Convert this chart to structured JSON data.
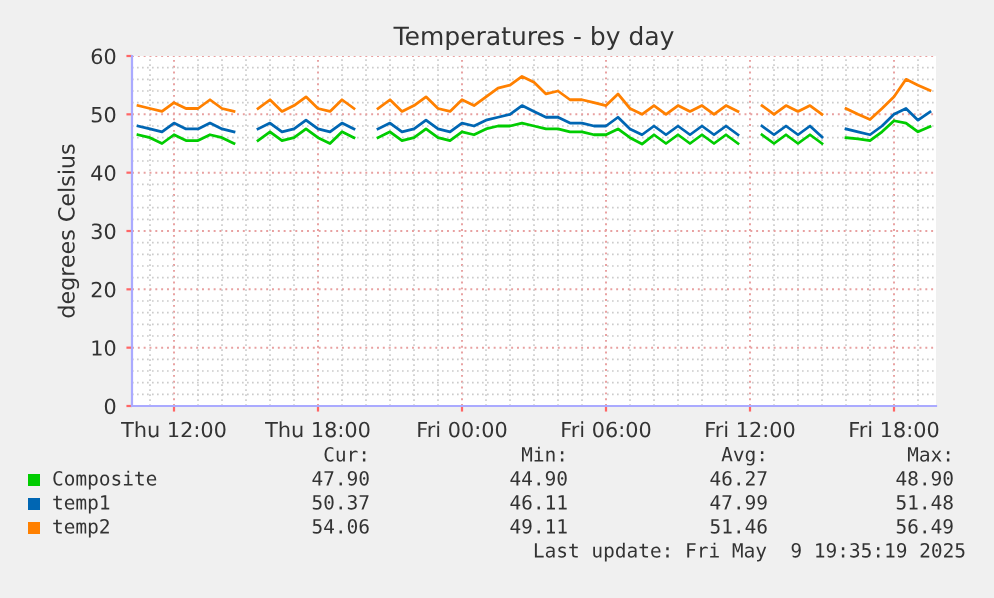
{
  "chart_data": {
    "type": "line",
    "title": "Temperatures - by day",
    "ylabel": "degrees Celsius",
    "x": [
      "2025-05-08T10:30",
      "2025-05-08T11:00",
      "2025-05-08T11:30",
      "2025-05-08T12:00",
      "2025-05-08T12:30",
      "2025-05-08T13:00",
      "2025-05-08T13:30",
      "2025-05-08T14:00",
      "2025-05-08T14:30",
      "2025-05-08T15:00",
      "2025-05-08T15:30",
      "2025-05-08T16:00",
      "2025-05-08T16:30",
      "2025-05-08T17:00",
      "2025-05-08T17:30",
      "2025-05-08T18:00",
      "2025-05-08T18:30",
      "2025-05-08T19:00",
      "2025-05-08T19:30",
      "2025-05-08T20:00",
      "2025-05-08T20:30",
      "2025-05-08T21:00",
      "2025-05-08T21:30",
      "2025-05-08T22:00",
      "2025-05-08T22:30",
      "2025-05-08T23:00",
      "2025-05-08T23:30",
      "2025-05-09T00:00",
      "2025-05-09T00:30",
      "2025-05-09T01:00",
      "2025-05-09T01:30",
      "2025-05-09T02:00",
      "2025-05-09T02:30",
      "2025-05-09T03:00",
      "2025-05-09T03:30",
      "2025-05-09T04:00",
      "2025-05-09T04:30",
      "2025-05-09T05:00",
      "2025-05-09T05:30",
      "2025-05-09T06:00",
      "2025-05-09T06:30",
      "2025-05-09T07:00",
      "2025-05-09T07:30",
      "2025-05-09T08:00",
      "2025-05-09T08:30",
      "2025-05-09T09:00",
      "2025-05-09T09:30",
      "2025-05-09T10:00",
      "2025-05-09T10:30",
      "2025-05-09T11:00",
      "2025-05-09T11:30",
      "2025-05-09T12:00",
      "2025-05-09T12:30",
      "2025-05-09T13:00",
      "2025-05-09T13:30",
      "2025-05-09T14:00",
      "2025-05-09T14:30",
      "2025-05-09T15:00",
      "2025-05-09T15:30",
      "2025-05-09T16:00",
      "2025-05-09T16:30",
      "2025-05-09T17:00",
      "2025-05-09T17:30",
      "2025-05-09T18:00",
      "2025-05-09T18:30",
      "2025-05-09T19:00",
      "2025-05-09T19:30"
    ],
    "series": [
      {
        "name": "Composite",
        "color": "#00cc00",
        "values": [
          46.5,
          46,
          45,
          46.5,
          45.5,
          45.5,
          46.5,
          46,
          45,
          null,
          45.5,
          47,
          45.5,
          46,
          47.5,
          46,
          45,
          47,
          46,
          null,
          46,
          47,
          45.5,
          46,
          47.5,
          46,
          45.5,
          47,
          46.5,
          47.5,
          48,
          48,
          48.5,
          48,
          47.5,
          47.5,
          47,
          47,
          46.5,
          46.5,
          47.5,
          46,
          44.9,
          46.5,
          45,
          46.5,
          45,
          46.5,
          45,
          46.5,
          45,
          null,
          46.5,
          45,
          46.5,
          45,
          46.5,
          45,
          null,
          46,
          45.8,
          45.5,
          47,
          48.9,
          48.5,
          47,
          47.9
        ]
      },
      {
        "name": "temp1",
        "color": "#0066b3",
        "values": [
          48,
          47.5,
          47,
          48.5,
          47.5,
          47.5,
          48.5,
          47.5,
          47,
          null,
          47.5,
          48.5,
          47,
          47.5,
          49,
          47.5,
          47,
          48.5,
          47.5,
          null,
          47.5,
          48.5,
          47,
          47.5,
          49,
          47.5,
          47,
          48.5,
          48,
          49,
          49.5,
          50,
          51.5,
          50.5,
          49.5,
          49.5,
          48.5,
          48.5,
          48,
          48,
          49.5,
          47.5,
          46.5,
          48,
          46.5,
          48,
          46.5,
          48,
          46.5,
          48,
          46.5,
          null,
          48,
          46.5,
          48,
          46.5,
          48,
          46.1,
          null,
          47.5,
          47,
          46.5,
          48,
          50,
          51,
          49,
          50.4
        ]
      },
      {
        "name": "temp2",
        "color": "#ff8000",
        "values": [
          51.5,
          51,
          50.5,
          52,
          51,
          51,
          52.5,
          51,
          50.5,
          null,
          51,
          52.5,
          50.5,
          51.5,
          53,
          51,
          50.5,
          52.5,
          51,
          null,
          51,
          52.5,
          50.5,
          51.5,
          53,
          51,
          50.5,
          52.5,
          51.5,
          53,
          54.5,
          55,
          56.5,
          55.5,
          53.5,
          54,
          52.5,
          52.5,
          52,
          51.5,
          53.5,
          51,
          50,
          51.5,
          50,
          51.5,
          50.5,
          51.5,
          50,
          51.5,
          50.5,
          null,
          51.5,
          50,
          51.5,
          50.5,
          51.5,
          50,
          null,
          51,
          50,
          49.1,
          51,
          53,
          56,
          55,
          54.1
        ]
      }
    ],
    "xlim": [
      "2025-05-08T10:15",
      "2025-05-09T19:45"
    ],
    "xticks": [
      {
        "value": "2025-05-08T12:00",
        "label": "Thu 12:00"
      },
      {
        "value": "2025-05-08T18:00",
        "label": "Thu 18:00"
      },
      {
        "value": "2025-05-09T00:00",
        "label": "Fri 00:00"
      },
      {
        "value": "2025-05-09T06:00",
        "label": "Fri 06:00"
      },
      {
        "value": "2025-05-09T12:00",
        "label": "Fri 12:00"
      },
      {
        "value": "2025-05-09T18:00",
        "label": "Fri 18:00"
      }
    ],
    "ylim": [
      0,
      60
    ],
    "yticks": [
      0,
      10,
      20,
      30,
      40,
      50,
      60
    ],
    "grid": true,
    "legend": "bottom",
    "marker": "none",
    "line_style": "solid",
    "annotations": [
      "Cur:",
      "Min:",
      "Avg:",
      "Max:",
      "47.90",
      "44.90",
      "46.27",
      "48.90",
      "50.37",
      "46.11",
      "47.99",
      "51.48",
      "54.06",
      "49.11",
      "51.46",
      "56.49",
      "Last update: Fri May  9 19:35:19 2025"
    ]
  }
}
